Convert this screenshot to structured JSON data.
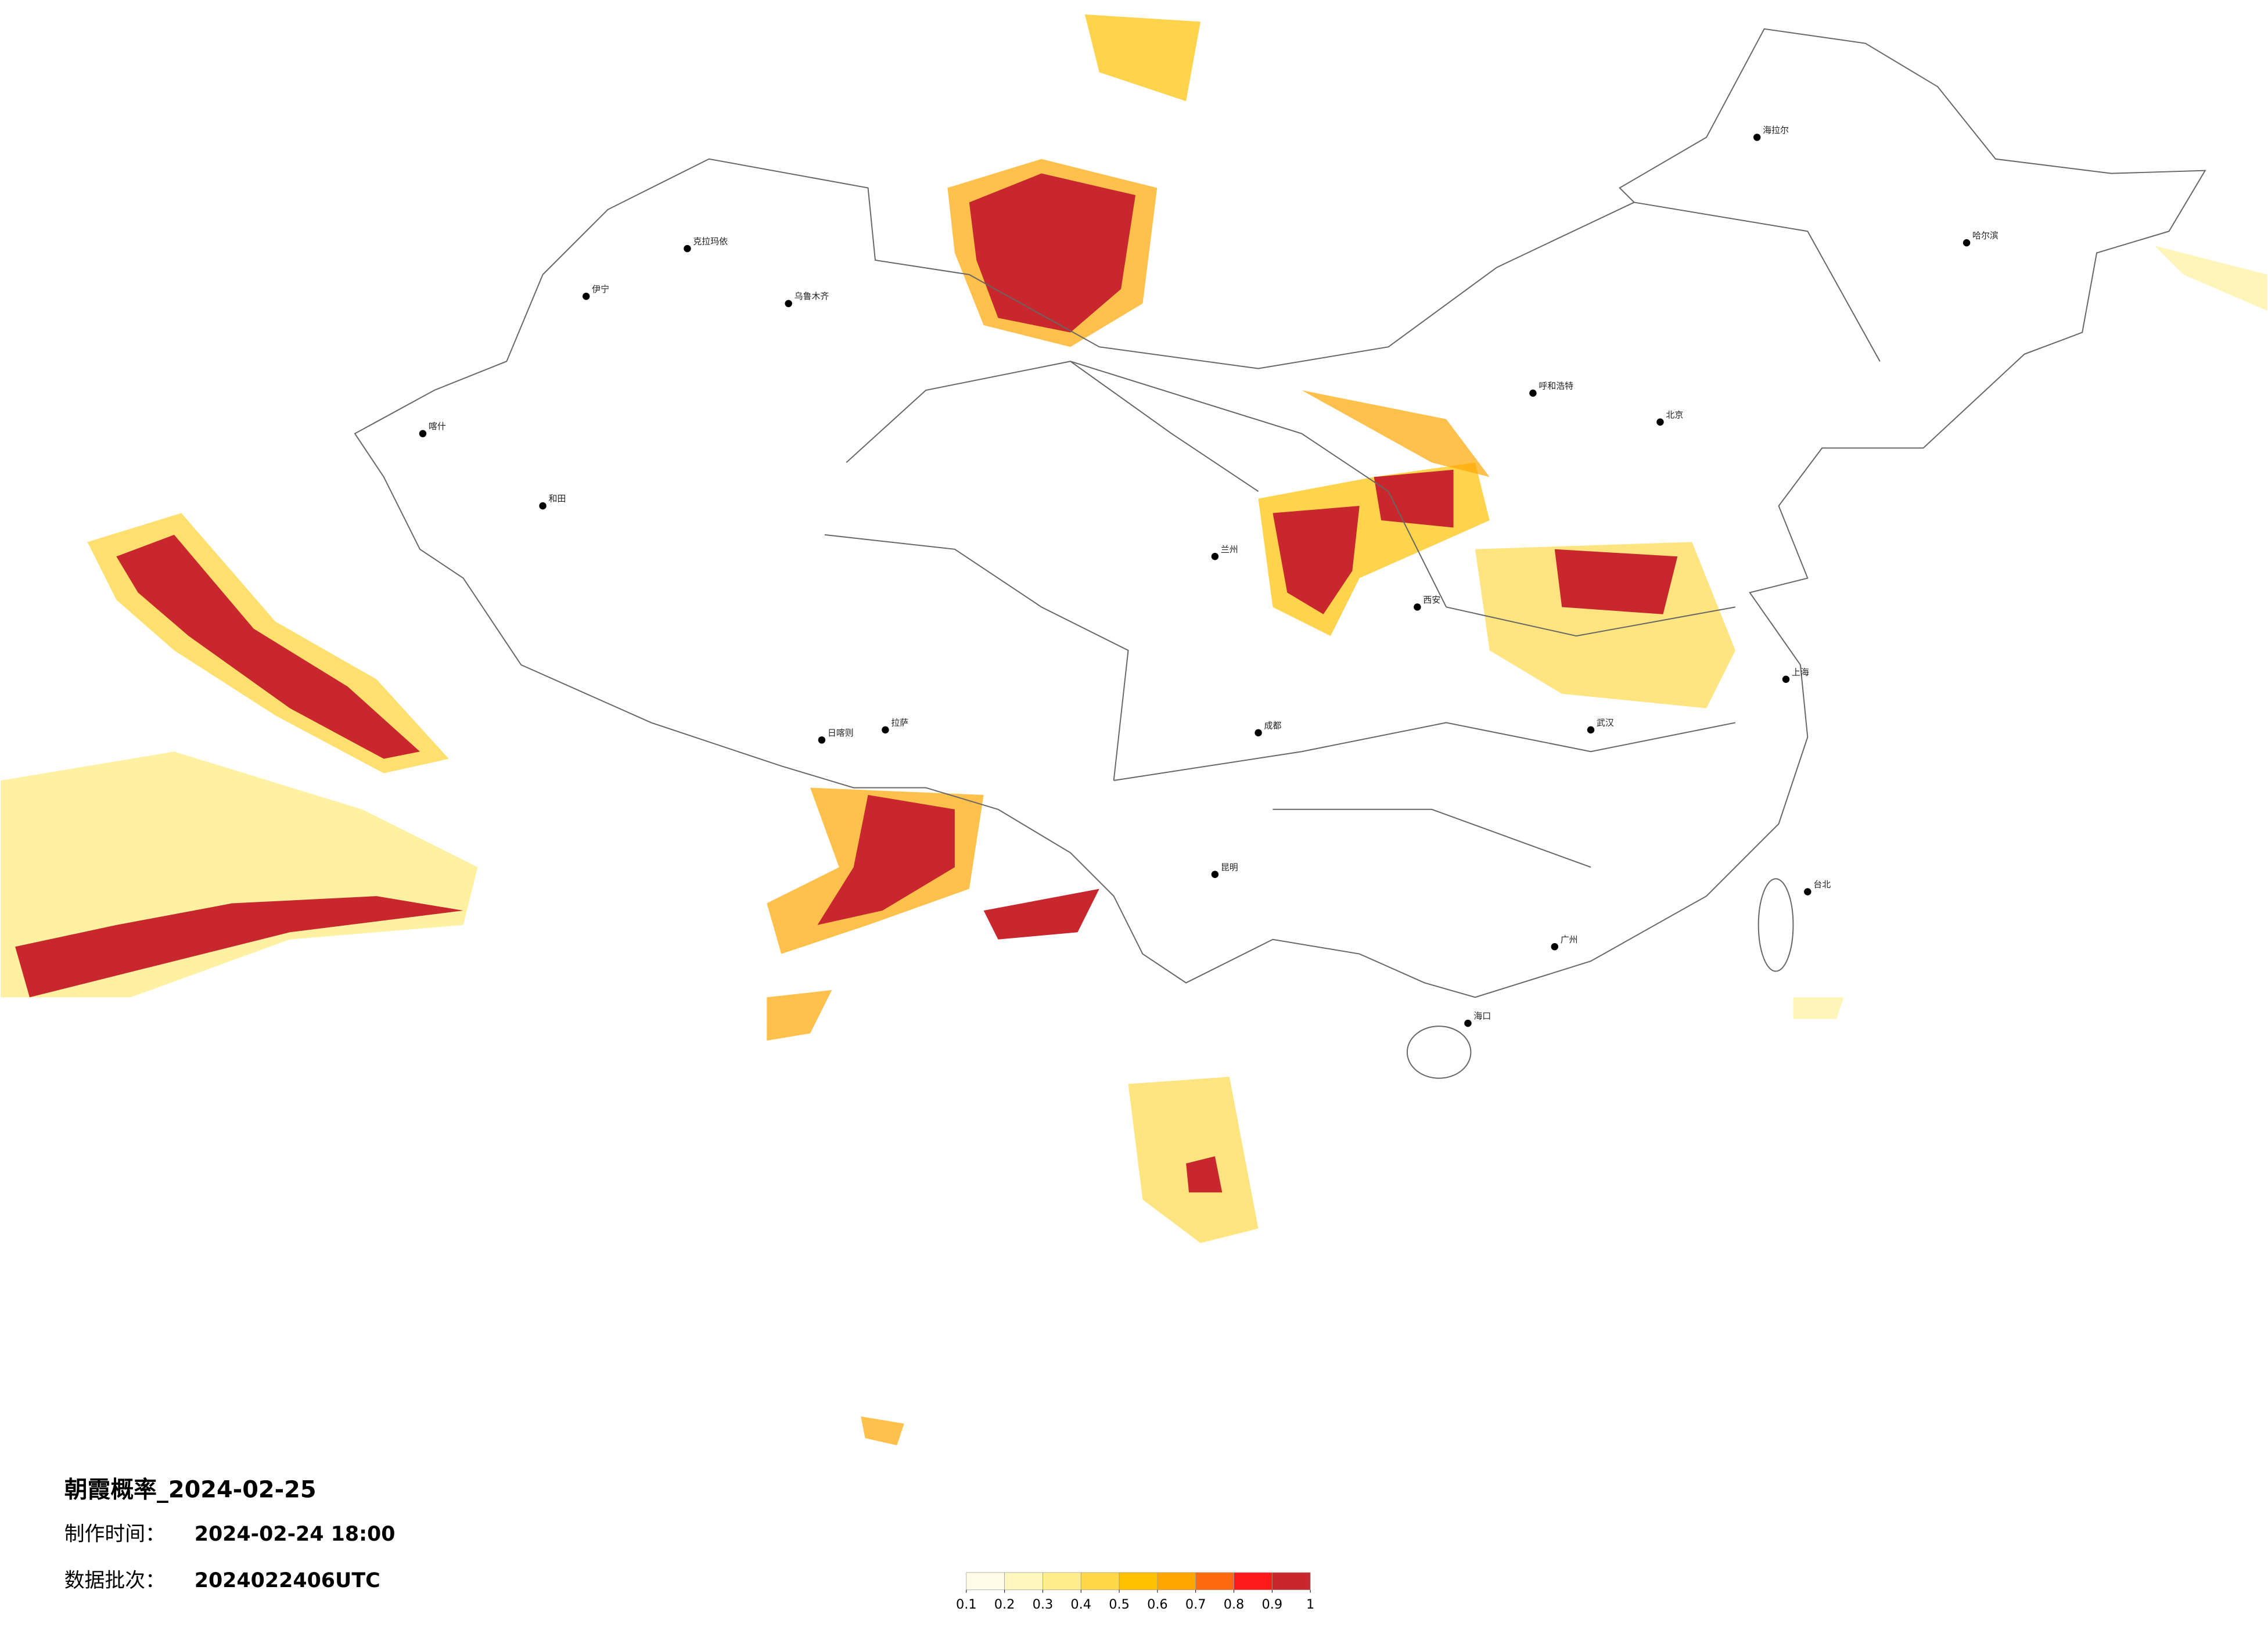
{
  "header": {
    "title": "朝霞概率_2024-02-25",
    "made_label": "制作时间：",
    "made_value": "2024-02-24 18:00",
    "batch_label": "数据批次：",
    "batch_value": "2024022406UTC"
  },
  "colorbar": {
    "ticks": [
      0.1,
      0.2,
      0.3,
      0.4,
      0.5,
      0.6,
      0.7,
      0.8,
      0.9,
      1
    ],
    "colors": [
      "#fffce8",
      "#fff6c0",
      "#ffee8a",
      "#ffd84a",
      "#ffc000",
      "#ffa500",
      "#ff6a10",
      "#ff1a1a",
      "#c8282d"
    ]
  },
  "cities": [
    "北京",
    "上海",
    "广州",
    "成都",
    "拉萨",
    "乌鲁木齐",
    "哈尔滨",
    "西安",
    "武汉",
    "昆明",
    "兰州",
    "呼和浩特",
    "日喀则",
    "海拉尔",
    "台北",
    "海口",
    "喀什",
    "和田",
    "克拉玛依",
    "伊宁"
  ]
}
